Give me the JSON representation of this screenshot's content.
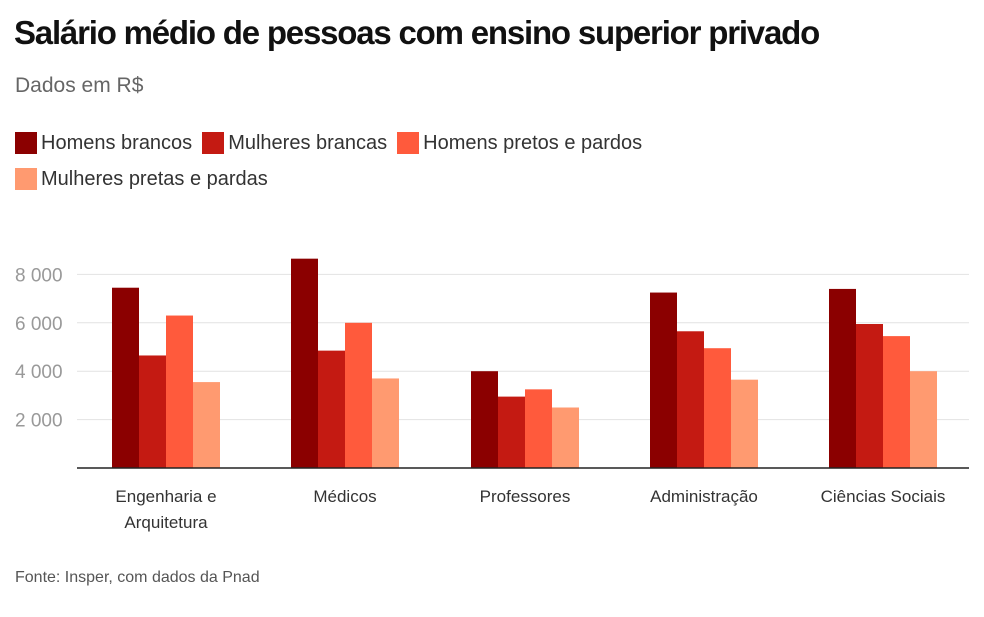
{
  "title": "Salário médio de pessoas com ensino superior privado",
  "subtitle": "Dados em R$",
  "source": "Fonte: Insper, com dados da Pnad",
  "chart_data": {
    "type": "bar",
    "title": "Salário médio de pessoas com ensino superior privado",
    "subtitle": "Dados em R$",
    "categories": [
      [
        "Engenharia e",
        "Arquitetura"
      ],
      [
        "Médicos"
      ],
      [
        "Professores"
      ],
      [
        "Administração"
      ],
      [
        "Ciências Sociais"
      ]
    ],
    "series": [
      {
        "name": "Homens brancos",
        "color": "#8b0000",
        "values": [
          7450,
          8650,
          4000,
          7250,
          7400
        ]
      },
      {
        "name": "Mulheres brancas",
        "color": "#c41a12",
        "values": [
          4650,
          4850,
          2950,
          5650,
          5950
        ]
      },
      {
        "name": "Homens pretos e pardos",
        "color": "#ff5a3c",
        "values": [
          6300,
          6000,
          3250,
          4950,
          5450
        ]
      },
      {
        "name": "Mulheres pretas e pardas",
        "color": "#ff9a70",
        "values": [
          3550,
          3700,
          2500,
          3650,
          4000
        ]
      }
    ],
    "yticks": [
      2000,
      4000,
      6000,
      8000
    ],
    "ytick_labels": [
      "2 000",
      "4 000",
      "6 000",
      "8 000"
    ],
    "ylim": [
      0,
      9000
    ],
    "grid": true,
    "legend_position": "top-left"
  }
}
